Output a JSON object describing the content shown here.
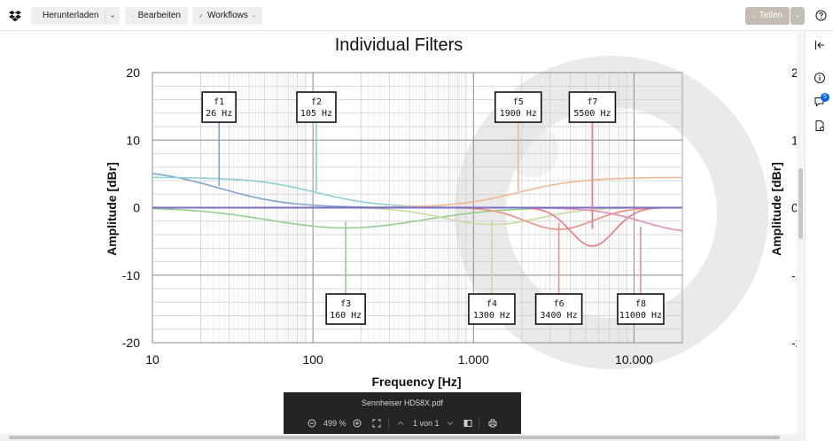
{
  "toolbar": {
    "download_label": "Herunterladen",
    "edit_label": "Bearbeiten",
    "workflows_label": "Workflows",
    "share_label": "Teilen"
  },
  "rail": {
    "comments_badge": "5"
  },
  "viewer": {
    "filename": "Sennheiser HD58X.pdf",
    "zoom": "499 %",
    "page_indicator": "1 von 1"
  },
  "chart_data": {
    "type": "line",
    "title": "Individual Filters",
    "xlabel": "Frequency [Hz]",
    "ylabel": "Amplitude  [dBr]",
    "xscale": "log",
    "xlim": [
      10,
      20000
    ],
    "ylim": [
      -20,
      20
    ],
    "x_ticks": [
      "10",
      "100",
      "1.000",
      "10.000"
    ],
    "y_ticks": [
      "20",
      "10",
      "0",
      "-10",
      "-20"
    ],
    "grid": true,
    "filters": [
      {
        "name": "f1",
        "freq_label": "26 Hz",
        "freq": 26,
        "gain": 5.8,
        "color": "#7fa6c9",
        "box": "top"
      },
      {
        "name": "f2",
        "freq_label": "105 Hz",
        "freq": 105,
        "gain": 4.5,
        "color": "#8fcfd4",
        "box": "top"
      },
      {
        "name": "f3",
        "freq_label": "160 Hz",
        "freq": 160,
        "gain": -3.0,
        "color": "#93cf8f",
        "box": "bottom"
      },
      {
        "name": "f4",
        "freq_label": "1300 Hz",
        "freq": 1300,
        "gain": -2.5,
        "color": "#c5dd9e",
        "box": "bottom"
      },
      {
        "name": "f5",
        "freq_label": "1900 Hz",
        "freq": 1900,
        "gain": 4.5,
        "color": "#f0b890",
        "box": "top"
      },
      {
        "name": "f6",
        "freq_label": "3400 Hz",
        "freq": 3400,
        "gain": -3.2,
        "color": "#ee9080",
        "box": "bottom"
      },
      {
        "name": "f7",
        "freq_label": "5500 Hz",
        "freq": 5500,
        "gain": -5.7,
        "color": "#ea7a86",
        "box": "top"
      },
      {
        "name": "f8",
        "freq_label": "11000 Hz",
        "freq": 11000,
        "gain": -4.0,
        "color": "#e58fb6",
        "box": "bottom"
      }
    ],
    "baseline_color": "#7b6fc4"
  }
}
